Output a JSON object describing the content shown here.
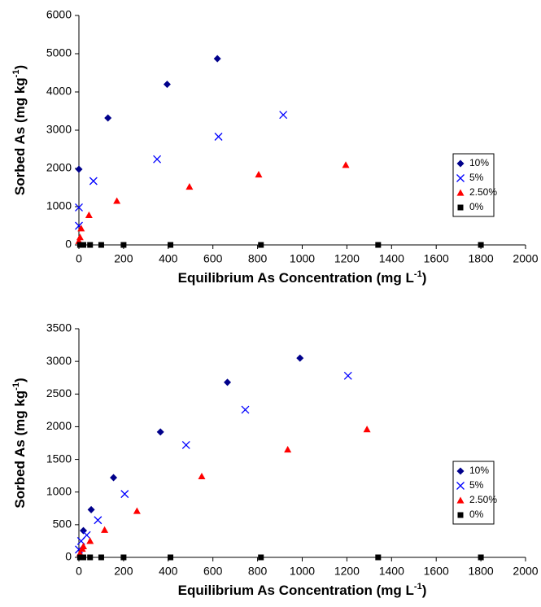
{
  "chart_data": [
    {
      "type": "scatter",
      "xlabel": [
        "Equilibrium As Concentration (mg L",
        "-1",
        ")"
      ],
      "ylabel": [
        "Sorbed As (mg kg",
        "-1",
        ")"
      ],
      "xlim": [
        0,
        2000
      ],
      "xticks": [
        0,
        200,
        400,
        600,
        800,
        1000,
        1200,
        1400,
        1600,
        1800,
        2000
      ],
      "ylim": [
        0,
        6000
      ],
      "yticks": [
        0,
        1000,
        2000,
        3000,
        4000,
        5000,
        6000
      ],
      "legend": "right",
      "series": [
        {
          "name": "10%",
          "color": "#00008b",
          "marker": "diamond",
          "x": [
            0,
            130,
            395,
            620
          ],
          "values": [
            1980,
            3320,
            4200,
            4870
          ]
        },
        {
          "name": "5%",
          "color": "#0000ff",
          "marker": "x",
          "x": [
            0,
            0,
            65,
            350,
            625,
            915
          ],
          "values": [
            500,
            980,
            1670,
            2240,
            2830,
            3400
          ]
        },
        {
          "name": "2.50%",
          "color": "#ff0000",
          "marker": "triangle",
          "x": [
            0,
            5,
            10,
            45,
            170,
            495,
            805,
            1195
          ],
          "values": [
            100,
            200,
            430,
            780,
            1150,
            1520,
            1840,
            2090
          ]
        },
        {
          "name": "0%",
          "color": "#000000",
          "marker": "square",
          "x": [
            5,
            20,
            50,
            100,
            200,
            410,
            815,
            1340,
            1800
          ],
          "values": [
            0,
            0,
            0,
            0,
            0,
            0,
            0,
            0,
            0
          ]
        }
      ]
    },
    {
      "type": "scatter",
      "xlabel": [
        "Equilibrium As Concentration (mg L",
        "-1",
        ")"
      ],
      "ylabel": [
        "Sorbed As (mg kg",
        "-1",
        ")"
      ],
      "xlim": [
        0,
        2000
      ],
      "xticks": [
        0,
        200,
        400,
        600,
        800,
        1000,
        1200,
        1400,
        1600,
        1800,
        2000
      ],
      "ylim": [
        0,
        3500
      ],
      "yticks": [
        0,
        500,
        1000,
        1500,
        2000,
        2500,
        3000,
        3500
      ],
      "legend": "right",
      "series": [
        {
          "name": "10%",
          "color": "#00008b",
          "marker": "diamond",
          "x": [
            20,
            55,
            155,
            365,
            665,
            990
          ],
          "values": [
            410,
            730,
            1220,
            1920,
            2680,
            3050
          ]
        },
        {
          "name": "5%",
          "color": "#0000ff",
          "marker": "x",
          "x": [
            0,
            10,
            35,
            85,
            205,
            480,
            745,
            1205
          ],
          "values": [
            120,
            250,
            340,
            570,
            970,
            1720,
            2260,
            2780
          ]
        },
        {
          "name": "2.50%",
          "color": "#ff0000",
          "marker": "triangle",
          "x": [
            5,
            15,
            20,
            50,
            115,
            260,
            550,
            935,
            1290
          ],
          "values": [
            60,
            130,
            170,
            250,
            420,
            710,
            1240,
            1650,
            1960
          ]
        },
        {
          "name": "0%",
          "color": "#000000",
          "marker": "square",
          "x": [
            5,
            20,
            50,
            100,
            200,
            410,
            815,
            1340,
            1800
          ],
          "values": [
            0,
            0,
            0,
            0,
            0,
            0,
            0,
            0,
            0
          ]
        }
      ]
    }
  ]
}
